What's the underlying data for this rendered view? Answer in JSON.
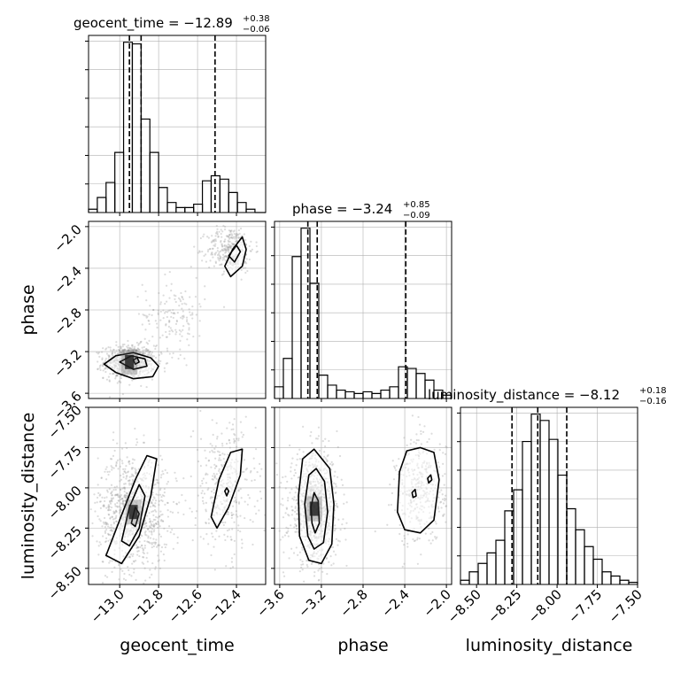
{
  "chart_data": {
    "type": "corner",
    "parameters": [
      "geocent_time",
      "phase",
      "luminosity_distance"
    ],
    "grid": true,
    "marginal_titles": [
      {
        "param": "geocent_time",
        "prefix": "geocent_time = −12.89",
        "sup": "+0.38",
        "sub": "−0.06"
      },
      {
        "param": "phase",
        "prefix": "phase = −3.24",
        "sup": "+0.85",
        "sub": "−0.09"
      },
      {
        "param": "luminosity_distance",
        "prefix": "luminosity_distance = −8.12",
        "sup": "+0.18",
        "sub": "−0.16"
      }
    ],
    "axes": {
      "geocent_time": {
        "range": [
          -13.16,
          -12.25
        ],
        "ticks": [
          -13.0,
          -12.8,
          -12.6,
          -12.4
        ],
        "tick_labels": [
          "−13.0",
          "−12.8",
          "−12.6",
          "−12.4"
        ]
      },
      "phase": {
        "range": [
          -3.65,
          -1.95
        ],
        "ticks": [
          -3.6,
          -3.2,
          -2.8,
          -2.4,
          -2.0
        ],
        "tick_labels": [
          "−3.6",
          "−3.2",
          "−2.8",
          "−2.4",
          "−2.0"
        ]
      },
      "luminosity_distance": {
        "range": [
          -8.6,
          -7.5
        ],
        "ticks": [
          -8.5,
          -8.25,
          -8.0,
          -7.75,
          -7.5
        ],
        "tick_labels": [
          "−8.50",
          "−8.25",
          "−8.00",
          "−7.75",
          "−7.50"
        ]
      }
    },
    "histograms": {
      "geocent_time": {
        "bin_edges": [
          -13.16,
          -13.115,
          -13.07,
          -13.025,
          -12.98,
          -12.935,
          -12.89,
          -12.845,
          -12.8,
          -12.755,
          -12.71,
          -12.665,
          -12.62,
          -12.575,
          -12.53,
          -12.485,
          -12.44,
          -12.395,
          -12.35,
          -12.305,
          -12.25
        ],
        "counts": [
          0.2,
          0.9,
          1.8,
          3.6,
          10.2,
          10.1,
          5.6,
          3.6,
          1.5,
          0.6,
          0.3,
          0.3,
          0.5,
          1.9,
          2.2,
          2.0,
          1.2,
          0.6,
          0.2,
          0.0
        ],
        "quantiles": [
          -12.95,
          -12.89,
          -12.51
        ]
      },
      "phase": {
        "bin_edges": [
          -3.65,
          -3.565,
          -3.48,
          -3.395,
          -3.31,
          -3.225,
          -3.14,
          -3.055,
          -2.97,
          -2.885,
          -2.8,
          -2.715,
          -2.63,
          -2.545,
          -2.46,
          -2.375,
          -2.29,
          -2.205,
          -2.12,
          -2.035,
          -1.95
        ],
        "counts": [
          0.7,
          2.4,
          8.5,
          10.2,
          6.9,
          1.4,
          0.8,
          0.5,
          0.4,
          0.3,
          0.4,
          0.3,
          0.5,
          0.7,
          1.9,
          1.8,
          1.5,
          1.1,
          0.5,
          0.2
        ],
        "quantiles": [
          -3.33,
          -3.24,
          -2.39
        ]
      },
      "luminosity_distance": {
        "bin_edges": [
          -8.6,
          -8.545,
          -8.49,
          -8.435,
          -8.38,
          -8.325,
          -8.27,
          -8.215,
          -8.16,
          -8.105,
          -8.05,
          -7.995,
          -7.94,
          -7.885,
          -7.83,
          -7.775,
          -7.72,
          -7.665,
          -7.61,
          -7.555,
          -7.5
        ],
        "counts": [
          0.2,
          0.6,
          1.0,
          1.5,
          2.1,
          3.5,
          4.5,
          6.8,
          8.1,
          7.8,
          6.9,
          5.2,
          3.6,
          2.6,
          1.8,
          1.2,
          0.6,
          0.4,
          0.2,
          0.1
        ],
        "quantiles": [
          -8.28,
          -8.12,
          -7.94
        ]
      }
    },
    "pair_modes": {
      "phase_vs_geocent_time": [
        {
          "x": -12.95,
          "y": -3.3,
          "sx": 0.065,
          "sy": 0.08,
          "weight": 0.62
        },
        {
          "x": -12.43,
          "y": -2.22,
          "sx": 0.06,
          "sy": 0.11,
          "weight": 0.26
        },
        {
          "x": -12.72,
          "y": -2.85,
          "sx": 0.08,
          "sy": 0.18,
          "weight": 0.12
        }
      ],
      "luminosity_distance_vs_geocent_time": [
        {
          "x": -12.93,
          "y": -8.15,
          "sx": 0.09,
          "sy": 0.18,
          "weight": 0.72
        },
        {
          "x": -12.46,
          "y": -8.0,
          "sx": 0.08,
          "sy": 0.2,
          "weight": 0.28
        }
      ],
      "luminosity_distance_vs_phase": [
        {
          "x": -3.27,
          "y": -8.13,
          "sx": 0.12,
          "sy": 0.17,
          "weight": 0.72
        },
        {
          "x": -2.25,
          "y": -8.02,
          "sx": 0.12,
          "sy": 0.17,
          "weight": 0.28
        }
      ]
    },
    "contours": {
      "phase_vs_geocent_time": [
        [
          [
            -13.08,
            -3.32
          ],
          [
            -13.02,
            -3.24
          ],
          [
            -12.93,
            -3.21
          ],
          [
            -12.84,
            -3.26
          ],
          [
            -12.8,
            -3.34
          ],
          [
            -12.83,
            -3.44
          ],
          [
            -12.93,
            -3.46
          ],
          [
            -13.02,
            -3.4
          ]
        ],
        [
          [
            -13.0,
            -3.3
          ],
          [
            -12.94,
            -3.24
          ],
          [
            -12.87,
            -3.27
          ],
          [
            -12.86,
            -3.34
          ],
          [
            -12.93,
            -3.37
          ]
        ],
        [
          [
            -12.93,
            -3.28
          ],
          [
            -12.91,
            -3.26
          ],
          [
            -12.9,
            -3.3
          ],
          [
            -12.92,
            -3.32
          ]
        ],
        [
          [
            -12.46,
            -2.38
          ],
          [
            -12.42,
            -2.22
          ],
          [
            -12.37,
            -2.1
          ],
          [
            -12.35,
            -2.22
          ],
          [
            -12.37,
            -2.38
          ],
          [
            -12.43,
            -2.48
          ]
        ],
        [
          [
            -12.44,
            -2.28
          ],
          [
            -12.4,
            -2.18
          ],
          [
            -12.38,
            -2.24
          ],
          [
            -12.41,
            -2.34
          ]
        ]
      ],
      "luminosity_distance_vs_geocent_time": [
        [
          [
            -13.07,
            -8.42
          ],
          [
            -13.0,
            -8.2
          ],
          [
            -12.92,
            -7.95
          ],
          [
            -12.86,
            -7.8
          ],
          [
            -12.81,
            -7.82
          ],
          [
            -12.84,
            -8.05
          ],
          [
            -12.9,
            -8.3
          ],
          [
            -12.99,
            -8.47
          ]
        ],
        [
          [
            -12.99,
            -8.33
          ],
          [
            -12.95,
            -8.12
          ],
          [
            -12.9,
            -7.98
          ],
          [
            -12.87,
            -8.05
          ],
          [
            -12.9,
            -8.25
          ],
          [
            -12.95,
            -8.36
          ]
        ],
        [
          [
            -12.94,
            -8.22
          ],
          [
            -12.92,
            -8.12
          ],
          [
            -12.9,
            -8.16
          ],
          [
            -12.92,
            -8.24
          ]
        ],
        [
          [
            -12.53,
            -8.18
          ],
          [
            -12.49,
            -7.95
          ],
          [
            -12.43,
            -7.78
          ],
          [
            -12.37,
            -7.76
          ],
          [
            -12.38,
            -7.92
          ],
          [
            -12.44,
            -8.12
          ],
          [
            -12.5,
            -8.25
          ]
        ],
        [
          [
            -12.46,
            -8.02
          ],
          [
            -12.45,
            -8.0
          ],
          [
            -12.44,
            -8.02
          ],
          [
            -12.45,
            -8.05
          ]
        ]
      ],
      "luminosity_distance_vs_phase": [
        [
          [
            -3.42,
            -8.05
          ],
          [
            -3.38,
            -7.82
          ],
          [
            -3.27,
            -7.76
          ],
          [
            -3.12,
            -7.88
          ],
          [
            -3.08,
            -8.1
          ],
          [
            -3.1,
            -8.35
          ],
          [
            -3.2,
            -8.47
          ],
          [
            -3.32,
            -8.45
          ],
          [
            -3.41,
            -8.3
          ]
        ],
        [
          [
            -3.36,
            -8.1
          ],
          [
            -3.32,
            -7.92
          ],
          [
            -3.25,
            -7.88
          ],
          [
            -3.17,
            -7.96
          ],
          [
            -3.14,
            -8.15
          ],
          [
            -3.18,
            -8.34
          ],
          [
            -3.27,
            -8.38
          ],
          [
            -3.33,
            -8.3
          ]
        ],
        [
          [
            -3.3,
            -8.12
          ],
          [
            -3.27,
            -8.03
          ],
          [
            -3.23,
            -8.08
          ],
          [
            -3.22,
            -8.22
          ],
          [
            -3.26,
            -8.28
          ],
          [
            -3.29,
            -8.22
          ]
        ],
        [
          [
            -2.47,
            -8.15
          ],
          [
            -2.45,
            -7.9
          ],
          [
            -2.38,
            -7.77
          ],
          [
            -2.25,
            -7.75
          ],
          [
            -2.12,
            -7.78
          ],
          [
            -2.07,
            -7.95
          ],
          [
            -2.12,
            -8.2
          ],
          [
            -2.25,
            -8.28
          ],
          [
            -2.4,
            -8.26
          ]
        ],
        [
          [
            -2.18,
            -7.94
          ],
          [
            -2.15,
            -7.92
          ],
          [
            -2.14,
            -7.95
          ],
          [
            -2.17,
            -7.97
          ]
        ],
        [
          [
            -2.33,
            -8.03
          ],
          [
            -2.3,
            -8.01
          ],
          [
            -2.29,
            -8.05
          ],
          [
            -2.32,
            -8.06
          ]
        ]
      ]
    },
    "colors": {
      "line": "#000000",
      "scatter": "#9a9a9a",
      "grid": "#b0b0b0",
      "density": "#000000"
    }
  }
}
